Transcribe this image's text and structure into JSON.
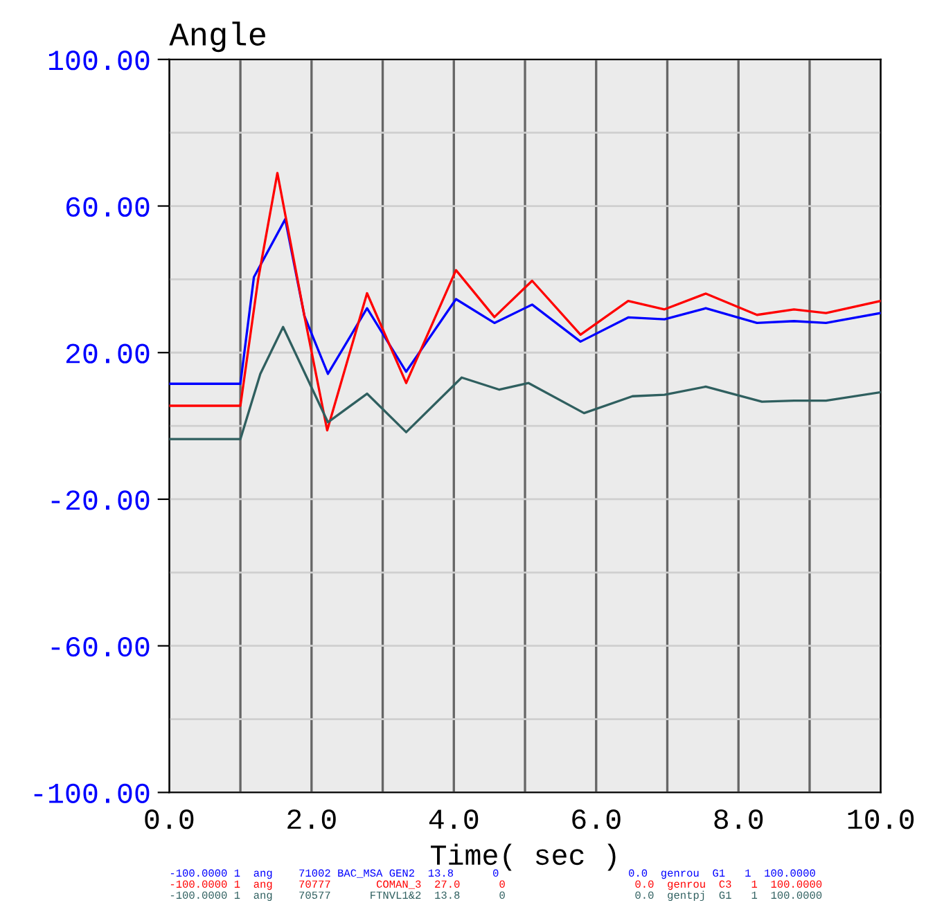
{
  "chart_data": {
    "type": "line",
    "title": "Angle",
    "xlabel": "Time( sec )",
    "xlim": [
      0,
      10
    ],
    "ylim": [
      -100,
      100
    ],
    "xticks": [
      {
        "value": 0,
        "label": "0.0"
      },
      {
        "value": 1,
        "label": null
      },
      {
        "value": 2,
        "label": "2.0"
      },
      {
        "value": 3,
        "label": null
      },
      {
        "value": 4,
        "label": "4.0"
      },
      {
        "value": 5,
        "label": null
      },
      {
        "value": 6,
        "label": "6.0"
      },
      {
        "value": 7,
        "label": null
      },
      {
        "value": 8,
        "label": "8.0"
      },
      {
        "value": 9,
        "label": null
      },
      {
        "value": 10,
        "label": "10.0"
      }
    ],
    "yticks": [
      {
        "value": -100,
        "label": "-100.00"
      },
      {
        "value": -80,
        "label": null
      },
      {
        "value": -60,
        "label": "-60.00"
      },
      {
        "value": -40,
        "label": null
      },
      {
        "value": -20,
        "label": "-20.00"
      },
      {
        "value": 0,
        "label": null
      },
      {
        "value": 20,
        "label": "20.00"
      },
      {
        "value": 40,
        "label": null
      },
      {
        "value": 60,
        "label": "60.00"
      },
      {
        "value": 80,
        "label": null
      },
      {
        "value": 100,
        "label": "100.00"
      }
    ],
    "grid": true,
    "legend": "bottom",
    "line_style": "solid",
    "marker": "none",
    "series": [
      {
        "name": "-100.0000 1  ang    71002 BAC_MSA GEN2  13.8      0                    0.0  genrou  G1   1  100.0000",
        "color": "#0000ff",
        "x": [
          0,
          1.0,
          1.19,
          1.63,
          1.9,
          2.23,
          2.78,
          3.33,
          4.03,
          4.57,
          5.1,
          5.78,
          6.45,
          6.96,
          7.54,
          8.26,
          8.78,
          9.23,
          10
        ],
        "values": [
          11.5,
          11.5,
          40.6,
          56.4,
          30,
          14.2,
          32.1,
          14.8,
          34.6,
          28.1,
          33.1,
          23.0,
          29.6,
          29.1,
          32.1,
          28.1,
          28.6,
          28.1,
          30.8
        ]
      },
      {
        "name": "-100.0000 1  ang    70777       COMAN_3  27.0      0                    0.0  genrou  C3   1  100.0000",
        "color": "#ff0000",
        "x": [
          0,
          1.0,
          1.25,
          1.52,
          1.9,
          2.22,
          2.78,
          3.33,
          4.03,
          4.57,
          5.1,
          5.78,
          6.45,
          6.96,
          7.54,
          8.26,
          8.78,
          9.23,
          10
        ],
        "values": [
          5.5,
          5.5,
          40,
          69,
          30,
          -1.2,
          36.2,
          11.7,
          42.5,
          29.7,
          39.6,
          24.9,
          34.1,
          31.8,
          36.1,
          30.3,
          31.8,
          30.8,
          34.1
        ]
      },
      {
        "name": "-100.0000 1  ang    70577      FTNVL1&2  13.8      0                    0.0  gentpj  G1   1  100.0000",
        "color": "#2f5f5f",
        "x": [
          0,
          1.0,
          1.28,
          1.6,
          2.23,
          2.78,
          3.33,
          4.11,
          4.64,
          5.05,
          5.83,
          6.51,
          6.96,
          7.54,
          8.33,
          8.78,
          9.23,
          10
        ],
        "values": [
          -3.6,
          -3.6,
          14.2,
          27.0,
          1.0,
          8.8,
          -1.7,
          13.2,
          9.9,
          11.7,
          3.5,
          8.1,
          8.5,
          10.7,
          6.6,
          6.9,
          6.9,
          9.2
        ]
      }
    ]
  }
}
